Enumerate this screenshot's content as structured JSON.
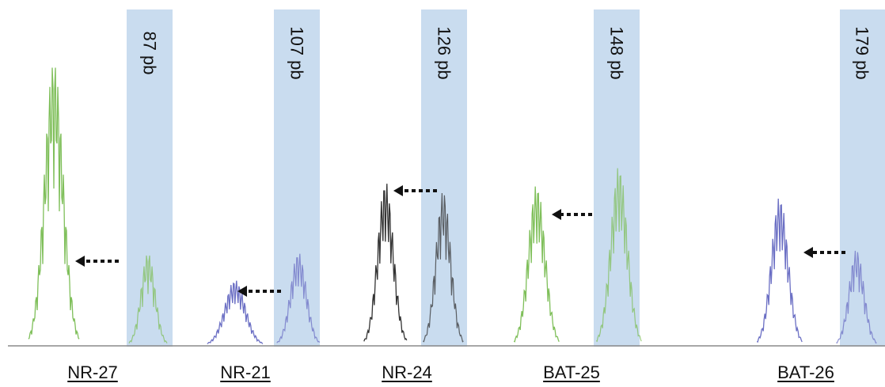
{
  "colors": {
    "band": "#c9dcef",
    "trace_green": "#7fbf5a",
    "trace_blue": "#6b6fc4",
    "trace_black": "#333333",
    "baseline": "#8a8a8a",
    "arrow": "#111111"
  },
  "chart_data": {
    "type": "line",
    "title": "",
    "xlabel": "",
    "ylabel": "",
    "grid": false,
    "legend": "none",
    "size_bands": [
      {
        "label": "87 pb",
        "size_bp": 87
      },
      {
        "label": "107 pb",
        "size_bp": 107
      },
      {
        "label": "126 pb",
        "size_bp": 126
      },
      {
        "label": "148 pb",
        "size_bp": 148
      },
      {
        "label": "179 pb",
        "size_bp": 179
      }
    ],
    "markers": [
      {
        "name": "NR-27",
        "reference_size_bp": 87,
        "shifted_peak_color": "green",
        "shifted_peak_height": 0.92,
        "reference_peak_height": 0.3
      },
      {
        "name": "NR-21",
        "reference_size_bp": 107,
        "shifted_peak_color": "blue",
        "shifted_peak_height": 0.21,
        "reference_peak_height": 0.3
      },
      {
        "name": "NR-24",
        "reference_size_bp": 126,
        "shifted_peak_color": "black",
        "shifted_peak_height": 0.53,
        "reference_peak_height": 0.5
      },
      {
        "name": "BAT-25",
        "reference_size_bp": 148,
        "shifted_peak_color": "green",
        "shifted_peak_height": 0.52,
        "reference_peak_height": 0.58
      },
      {
        "name": "BAT-26",
        "reference_size_bp": 179,
        "shifted_peak_color": "blue",
        "shifted_peak_height": 0.48,
        "reference_peak_height": 0.31
      }
    ]
  }
}
